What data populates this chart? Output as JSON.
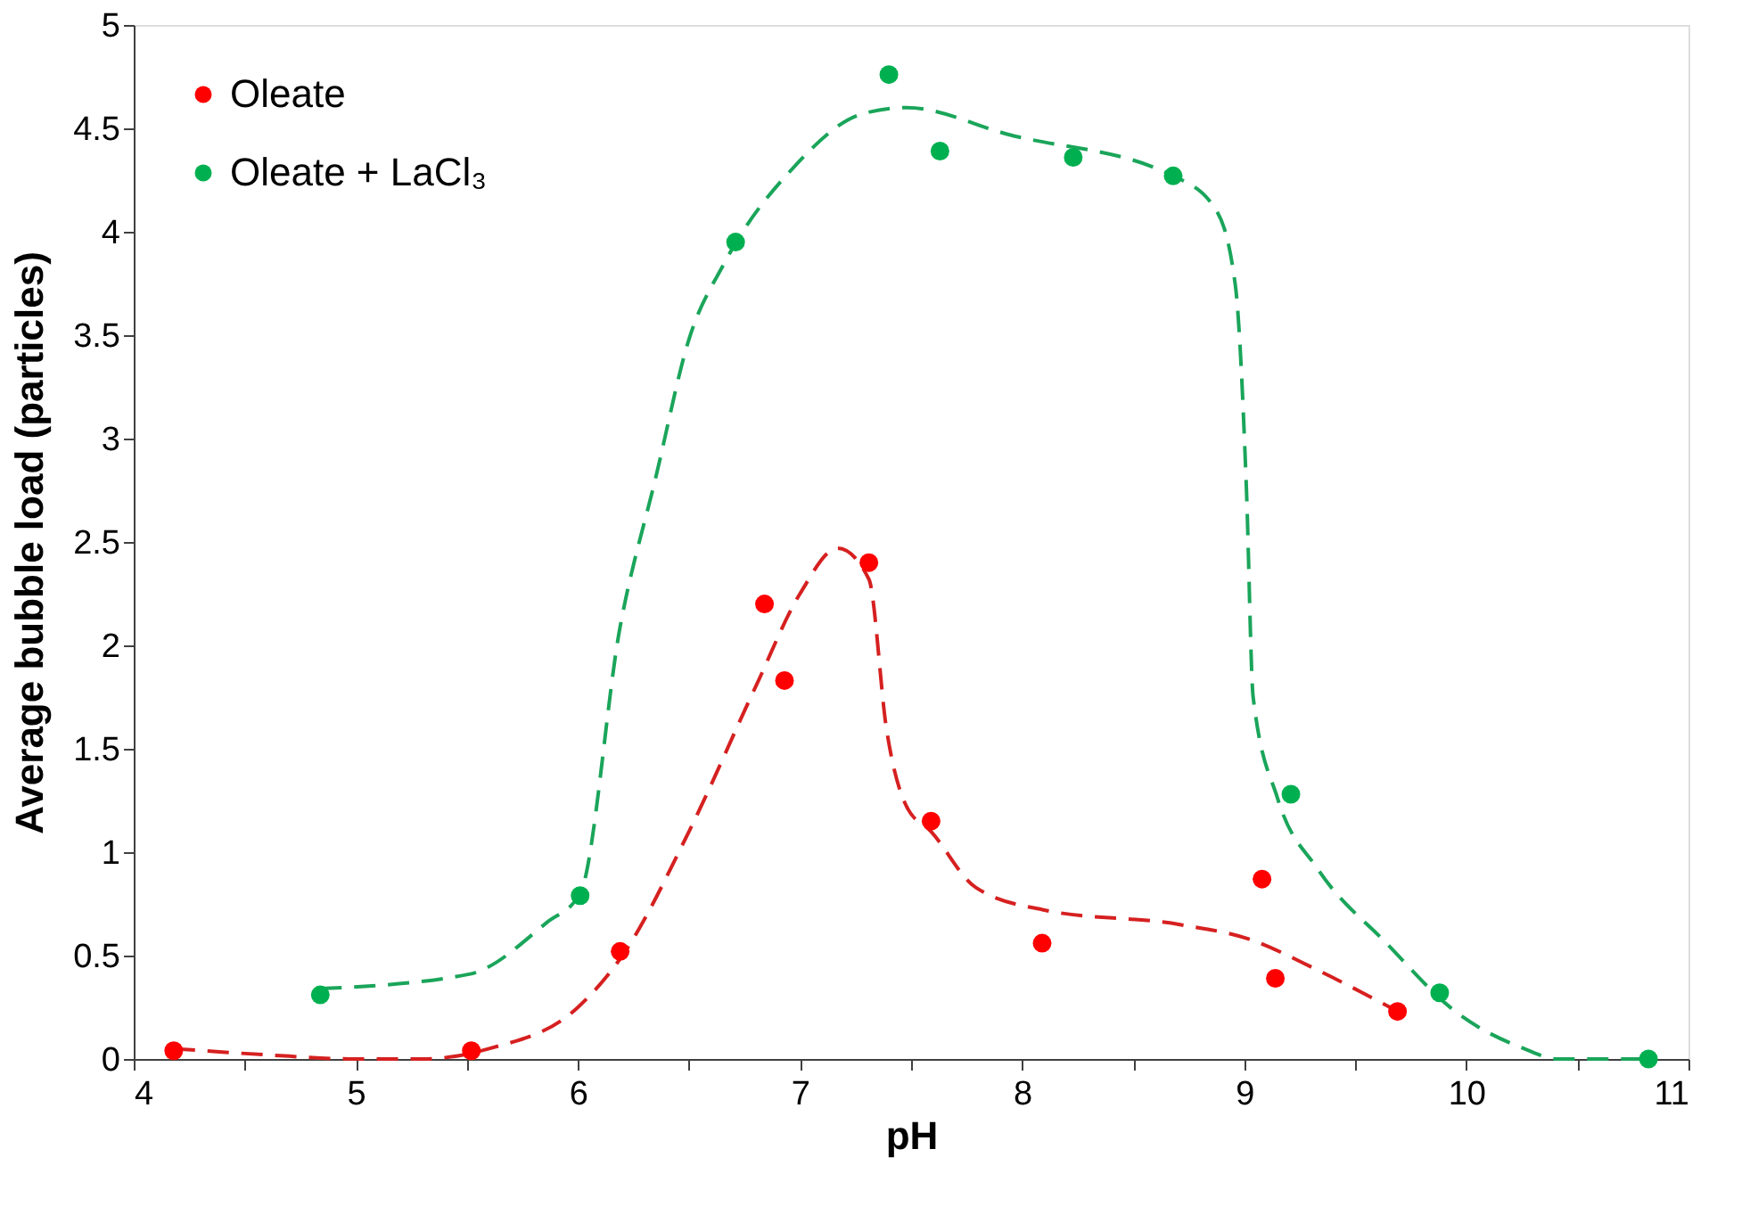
{
  "chart_data": {
    "type": "scatter",
    "xlabel": "pH",
    "ylabel": "Average bubble load (particles)",
    "xlim": [
      4,
      11
    ],
    "ylim": [
      0,
      5
    ],
    "xticks": [
      4,
      {
        "value": 4.5,
        "label": null
      },
      5,
      {
        "value": 5.5,
        "label": null
      },
      6,
      {
        "value": 6.5,
        "label": null
      },
      7,
      {
        "value": 7.5,
        "label": null
      },
      8,
      {
        "value": 8.5,
        "label": null
      },
      9,
      {
        "value": 9.5,
        "label": null
      },
      10,
      {
        "value": 10.5,
        "label": null
      },
      11
    ],
    "yticks": [
      0,
      0.5,
      1,
      1.5,
      2,
      2.5,
      3,
      3.5,
      4,
      4.5,
      5
    ],
    "grid": false,
    "legend": "top left",
    "marker": "circle",
    "series": [
      {
        "name": "Oleate",
        "color": "#ff0000",
        "x": [
          4.18,
          5.52,
          6.19,
          6.84,
          6.93,
          7.31,
          7.59,
          8.09,
          9.08,
          9.14,
          9.69
        ],
        "values": [
          0.04,
          0.04,
          0.52,
          2.2,
          1.83,
          2.4,
          1.15,
          0.56,
          0.87,
          0.39,
          0.23
        ]
      },
      {
        "name": "Oleate + LaCl₃",
        "color": "#00b050",
        "x": [
          4.84,
          6.01,
          6.71,
          7.4,
          7.63,
          8.23,
          8.68,
          9.21,
          9.88,
          10.82
        ],
        "values": [
          0.31,
          0.79,
          3.95,
          4.76,
          4.39,
          4.36,
          4.27,
          1.28,
          0.32,
          0.0
        ]
      },
      {
        "type": "line",
        "color": "#d62020",
        "line_style": "dashed",
        "marker": "none",
        "x": [
          4.18,
          4.6,
          5.0,
          5.3,
          5.6,
          6.0,
          6.2,
          6.5,
          6.8,
          7.0,
          7.17,
          7.31,
          7.39,
          7.48,
          7.59,
          7.79,
          8.1,
          8.71,
          9.02,
          9.33,
          9.69
        ],
        "values": [
          0.05,
          0.02,
          0.0,
          0.0,
          0.05,
          0.25,
          0.5,
          1.1,
          1.8,
          2.25,
          2.47,
          2.32,
          1.59,
          1.22,
          1.1,
          0.83,
          0.72,
          0.65,
          0.58,
          0.43,
          0.23
        ]
      },
      {
        "type": "line",
        "color": "#1aa55a",
        "line_style": "dashed",
        "marker": "none",
        "x": [
          4.84,
          5.51,
          5.86,
          6.01,
          6.19,
          6.35,
          6.5,
          6.66,
          6.97,
          7.28,
          7.48,
          7.94,
          8.68,
          8.87,
          8.96,
          9.01,
          9.04,
          9.15,
          9.33,
          9.64,
          9.95,
          10.26,
          10.41,
          10.82
        ],
        "values": [
          0.34,
          0.41,
          0.66,
          0.8,
          2.09,
          2.81,
          3.48,
          3.85,
          4.31,
          4.57,
          4.6,
          4.47,
          4.27,
          4.11,
          3.74,
          2.75,
          1.75,
          1.26,
          0.92,
          0.56,
          0.23,
          0.05,
          0.0,
          0.0
        ]
      }
    ]
  }
}
